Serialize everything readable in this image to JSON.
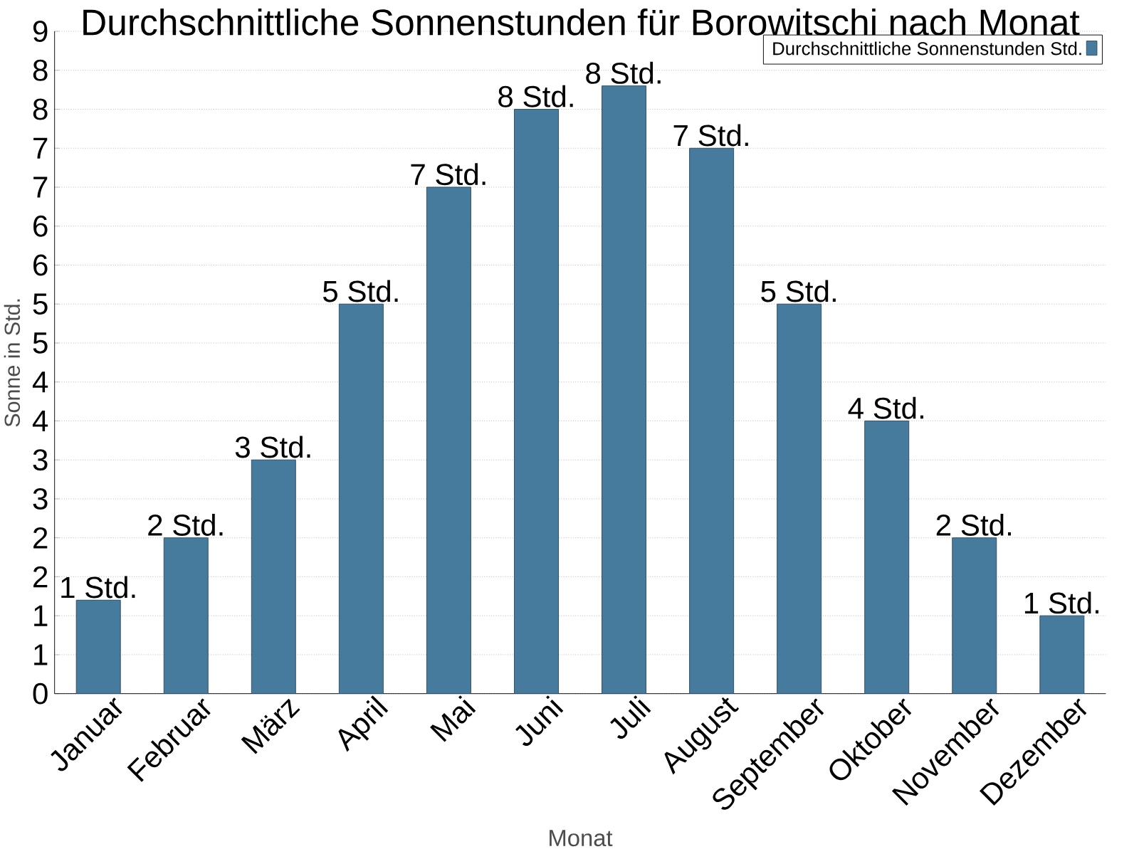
{
  "chart_data": {
    "type": "bar",
    "title": "Durchschnittliche Sonnenstunden für Borowitschi nach Monat",
    "xlabel": "Monat",
    "ylabel": "Sonne in Std.",
    "categories": [
      "Januar",
      "Februar",
      "März",
      "April",
      "Mai",
      "Juni",
      "Juli",
      "August",
      "September",
      "Oktober",
      "November",
      "Dezember"
    ],
    "series": [
      {
        "name": "Durchschnittliche Sonnenstunden Std.",
        "color": "#467b9e",
        "values": [
          1.2,
          2.0,
          3.0,
          5.0,
          6.5,
          7.5,
          7.8,
          7.0,
          5.0,
          3.5,
          2.0,
          1.0
        ],
        "value_labels": [
          "1 Std.",
          "2 Std.",
          "3 Std.",
          "5 Std.",
          "7 Std.",
          "8 Std.",
          "8 Std.",
          "7 Std.",
          "5 Std.",
          "4 Std.",
          "2 Std.",
          "1 Std."
        ]
      }
    ],
    "ylim": [
      0,
      8.5
    ],
    "yticks": [
      0,
      {
        "value": 0.5,
        "label": "1"
      },
      1,
      {
        "value": 1.5,
        "label": "2"
      },
      2,
      {
        "value": 2.5,
        "label": "3"
      },
      3,
      {
        "value": 3.5,
        "label": "4"
      },
      4,
      {
        "value": 4.5,
        "label": "5"
      },
      5,
      {
        "value": 5.5,
        "label": "6"
      },
      6,
      {
        "value": 6.5,
        "label": "7"
      },
      7,
      {
        "value": 7.5,
        "label": "8"
      },
      8,
      {
        "value": 8.5,
        "label": "9"
      }
    ],
    "grid": "y",
    "legend": "top right"
  }
}
